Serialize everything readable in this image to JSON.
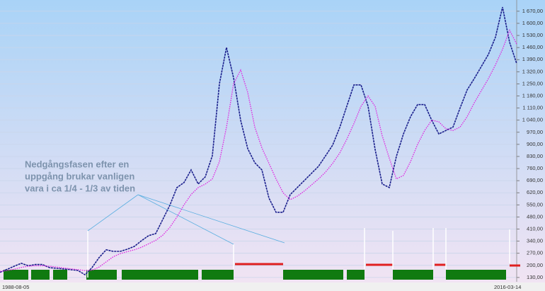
{
  "chart_data": {
    "type": "line",
    "categories": [
      "1988-08-05",
      null,
      null,
      null,
      null,
      null,
      null,
      null,
      null,
      null,
      null,
      null,
      null,
      null,
      null,
      null,
      null,
      null,
      null,
      null,
      null,
      null,
      null,
      null,
      null,
      null,
      null,
      null,
      null,
      null,
      null,
      null,
      null,
      null,
      null,
      null,
      null,
      null,
      null,
      null,
      null,
      null,
      null,
      null,
      null,
      null,
      null,
      null,
      null,
      null,
      null,
      null,
      null,
      null,
      null,
      null,
      null,
      null,
      null,
      null,
      null,
      null,
      null,
      null,
      null,
      null,
      null,
      null,
      null,
      null,
      null,
      null,
      null,
      "2016-03-14"
    ],
    "series": [
      {
        "color": "#1a1f8c",
        "values": [
          160,
          177,
          195,
          212,
          198,
          205,
          205,
          187,
          183,
          179,
          175,
          171,
          146,
          187,
          245,
          290,
          281,
          281,
          294,
          310,
          343,
          372,
          384,
          466,
          548,
          650,
          679,
          752,
          671,
          712,
          834,
          1250,
          1460,
          1285,
          1039,
          875,
          794,
          752,
          589,
          507,
          507,
          609,
          650,
          691,
          732,
          773,
          834,
          896,
          998,
          1121,
          1244,
          1244,
          1121,
          870,
          671,
          650,
          830,
          960,
          1060,
          1130,
          1130,
          1039,
          960,
          980,
          1000,
          1110,
          1215,
          1280,
          1350,
          1420,
          1520,
          1694,
          1490,
          1367
        ]
      },
      {
        "color": "#e020e0",
        "values": [
          165,
          170,
          178,
          188,
          195,
          198,
          198,
          195,
          190,
          185,
          180,
          175,
          170,
          172,
          190,
          220,
          250,
          268,
          280,
          290,
          305,
          325,
          345,
          375,
          420,
          480,
          550,
          610,
          650,
          670,
          700,
          800,
          1000,
          1250,
          1330,
          1200,
          1000,
          880,
          790,
          700,
          620,
          580,
          600,
          630,
          665,
          700,
          740,
          790,
          850,
          930,
          1020,
          1120,
          1180,
          1120,
          950,
          820,
          700,
          720,
          800,
          900,
          980,
          1040,
          1030,
          990,
          980,
          1000,
          1060,
          1140,
          1210,
          1280,
          1360,
          1450,
          1560,
          1480
        ]
      }
    ],
    "ylim": [
      105,
      1735
    ],
    "yticks": [
      {
        "value": 130,
        "label": "130,00"
      },
      {
        "value": 200,
        "label": "200,00"
      },
      {
        "value": 270,
        "label": "270,00"
      },
      {
        "value": 340,
        "label": "340,00"
      },
      {
        "value": 410,
        "label": "410,00"
      },
      {
        "value": 480,
        "label": "480,00"
      },
      {
        "value": 550,
        "label": "550,00"
      },
      {
        "value": 620,
        "label": "620,00"
      },
      {
        "value": 690,
        "label": "690,00"
      },
      {
        "value": 760,
        "label": "760,00"
      },
      {
        "value": 830,
        "label": "830,00"
      },
      {
        "value": 900,
        "label": "900,00"
      },
      {
        "value": 970,
        "label": "970,00"
      },
      {
        "value": 1040,
        "label": "1 040,00"
      },
      {
        "value": 1110,
        "label": "1 110,00"
      },
      {
        "value": 1180,
        "label": "1 180,00"
      },
      {
        "value": 1250,
        "label": "1 250,00"
      },
      {
        "value": 1320,
        "label": "1 320,00"
      },
      {
        "value": 1390,
        "label": "1 390,00"
      },
      {
        "value": 1460,
        "label": "1 460,00"
      },
      {
        "value": 1530,
        "label": "1 530,00"
      },
      {
        "value": 1600,
        "label": "1 600,00"
      },
      {
        "value": 1670,
        "label": "1 670,00"
      }
    ],
    "grid": true,
    "annotation": [
      "Nedgångsfasen efter en",
      "uppgång brukar vanligen",
      "vara i ca 1/4 - 1/3 av tiden"
    ]
  }
}
